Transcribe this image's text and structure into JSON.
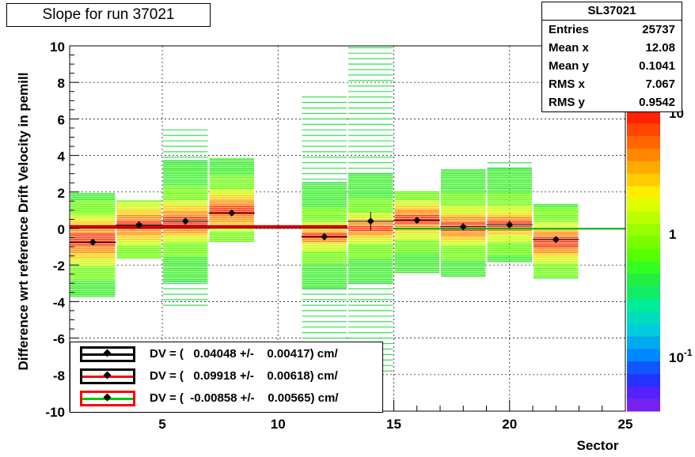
{
  "title": "Slope for run 37021",
  "stats": {
    "name": "SL37021",
    "rows": [
      {
        "label": "Entries",
        "value": "25737"
      },
      {
        "label": "Mean x",
        "value": "12.08"
      },
      {
        "label": "Mean y",
        "value": "0.1041"
      },
      {
        "label": "RMS x",
        "value": "7.067"
      },
      {
        "label": "RMS y",
        "value": "0.9542"
      }
    ]
  },
  "legend": [
    {
      "text": "DV = (   0.04048 +/-    0.00417) cm/",
      "color": "#000000"
    },
    {
      "text": "DV = (   0.09918 +/-    0.00618) cm/",
      "color": "#000000"
    },
    {
      "text": "DV = (  -0.00858 +/-    0.00565) cm/",
      "color": "#ff0000"
    }
  ],
  "chart_data": {
    "type": "heatmap",
    "title": "Slope for run 37021",
    "xlabel": "Sector",
    "ylabel": "Difference wrt reference Drift Velocity in pemill",
    "xlim": [
      1,
      25
    ],
    "ylim": [
      -10,
      10
    ],
    "xticks": [
      5,
      10,
      15,
      20,
      25
    ],
    "yticks": [
      -10,
      -8,
      -6,
      -4,
      -2,
      0,
      2,
      4,
      6,
      8,
      10
    ],
    "colorbar_labels": [
      "10",
      "1",
      "10^-1"
    ],
    "grid": true,
    "profile_points": [
      {
        "x": 2,
        "y": -0.75,
        "yerr": 0.15
      },
      {
        "x": 4,
        "y": 0.2,
        "yerr": 0.1
      },
      {
        "x": 6,
        "y": 0.4,
        "yerr": 0.1
      },
      {
        "x": 8,
        "y": 0.85,
        "yerr": 0.1
      },
      {
        "x": 12,
        "y": -0.45,
        "yerr": 0.2
      },
      {
        "x": 14,
        "y": 0.4,
        "yerr": 0.5
      },
      {
        "x": 16,
        "y": 0.45,
        "yerr": 0.1
      },
      {
        "x": 18,
        "y": 0.1,
        "yerr": 0.1
      },
      {
        "x": 20,
        "y": 0.2,
        "yerr": 0.1
      },
      {
        "x": 22,
        "y": -0.6,
        "yerr": 0.1
      }
    ],
    "bands": [
      {
        "x0": 1,
        "x1": 3,
        "ymin": -3.7,
        "ymax": 1.9,
        "core": [
          -1.6,
          0.4
        ]
      },
      {
        "x0": 3,
        "x1": 5,
        "ymin": -1.6,
        "ymax": 1.5,
        "core": [
          -0.6,
          1.0
        ]
      },
      {
        "x0": 5,
        "x1": 7,
        "ymin": -4.2,
        "ymax": 5.5,
        "core": [
          -0.4,
          1.2
        ]
      },
      {
        "x0": 7,
        "x1": 9,
        "ymin": -0.7,
        "ymax": 3.8,
        "core": [
          0.2,
          1.8
        ]
      },
      {
        "x0": 11,
        "x1": 13,
        "ymin": -6.7,
        "ymax": 7.2,
        "core": [
          -0.8,
          0.0
        ]
      },
      {
        "x0": 13,
        "x1": 15,
        "ymin": -8.0,
        "ymax": 10.0,
        "core": [
          -0.5,
          0.5
        ]
      },
      {
        "x0": 15,
        "x1": 17,
        "ymin": -2.4,
        "ymax": 2.0,
        "core": [
          -0.2,
          1.2
        ]
      },
      {
        "x0": 17,
        "x1": 19,
        "ymin": -2.6,
        "ymax": 3.2,
        "core": [
          -0.6,
          0.8
        ]
      },
      {
        "x0": 19,
        "x1": 21,
        "ymin": -1.8,
        "ymax": 3.6,
        "core": [
          -0.3,
          0.8
        ]
      },
      {
        "x0": 21,
        "x1": 23,
        "ymin": -2.7,
        "ymax": 1.3,
        "core": [
          -1.5,
          0.0
        ]
      }
    ],
    "fit_lines": [
      {
        "x0": 1,
        "x1": 13,
        "y": 0.04,
        "color": "#000000"
      },
      {
        "x0": 1,
        "x1": 13,
        "y": 0.1,
        "color": "#cc0000"
      },
      {
        "x0": 15,
        "x1": 25,
        "y": -0.01,
        "color": "#00aa00"
      }
    ]
  }
}
